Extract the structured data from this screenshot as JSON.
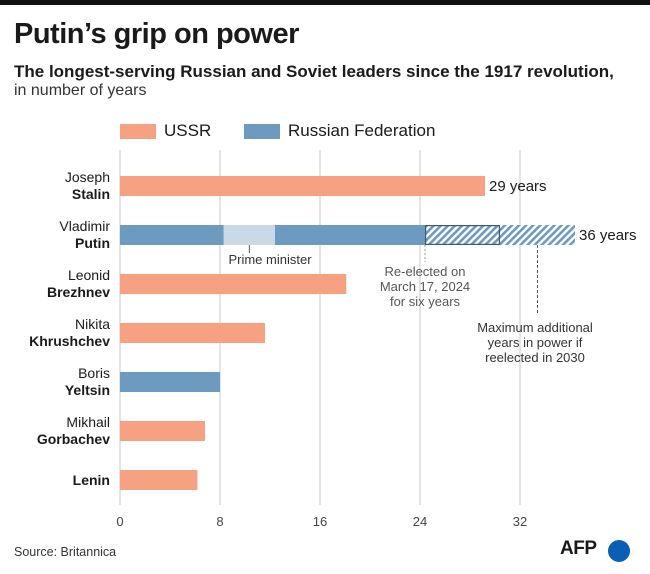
{
  "title": "Putin’s grip on power",
  "subtitle": "The longest-serving Russian and Soviet leaders since the 1917 revolution,",
  "subtitle2": "in number of years",
  "source": "Source: Britannica",
  "logo_text": "AFP",
  "colors": {
    "ussr": "#f5a182",
    "rf": "#6d9bbf",
    "pm": "#c9d9e5",
    "hatch": "#6d9bbf",
    "grid": "#c8c8c8"
  },
  "legend": [
    {
      "label": "USSR",
      "key": "ussr"
    },
    {
      "label": "Russian Federation",
      "key": "rf"
    }
  ],
  "chart_data": {
    "type": "bar",
    "orientation": "horizontal",
    "xlim": [
      0,
      36
    ],
    "xticks": [
      0,
      8,
      16,
      24,
      32
    ],
    "leaders": [
      {
        "first": "Joseph",
        "last": "Stalin",
        "value_label": "29 years",
        "segments": [
          {
            "from": 0,
            "to": 29.2,
            "kind": "ussr"
          }
        ]
      },
      {
        "first": "Vladimir",
        "last": "Putin",
        "value_label": "36 years",
        "segments": [
          {
            "from": 0,
            "to": 8.3,
            "kind": "rf"
          },
          {
            "from": 8.3,
            "to": 12.4,
            "kind": "pm"
          },
          {
            "from": 12.4,
            "to": 24.4,
            "kind": "rf"
          },
          {
            "from": 24.4,
            "to": 30.4,
            "kind": "hatch_outline"
          },
          {
            "from": 30.4,
            "to": 36.4,
            "kind": "hatch"
          }
        ]
      },
      {
        "first": "Leonid",
        "last": "Brezhnev",
        "value_label": "",
        "segments": [
          {
            "from": 0,
            "to": 18.1,
            "kind": "ussr"
          }
        ]
      },
      {
        "first": "Nikita",
        "last": "Khrushchev",
        "value_label": "",
        "segments": [
          {
            "from": 0,
            "to": 11.6,
            "kind": "ussr"
          }
        ]
      },
      {
        "first": "Boris",
        "last": "Yeltsin",
        "value_label": "",
        "segments": [
          {
            "from": 0,
            "to": 8.0,
            "kind": "rf"
          }
        ]
      },
      {
        "first": "Mikhail",
        "last": "Gorbachev",
        "value_label": "",
        "segments": [
          {
            "from": 0,
            "to": 6.8,
            "kind": "ussr"
          }
        ]
      },
      {
        "first": "",
        "last": "Lenin",
        "value_label": "",
        "segments": [
          {
            "from": 0,
            "to": 6.2,
            "kind": "ussr"
          }
        ]
      }
    ],
    "annotations": {
      "prime_minister": "Prime minister",
      "reelected": [
        "Re-elected on",
        "March 17, 2024",
        "for six years"
      ],
      "max_additional": [
        "Maximum additional",
        "years in power if",
        "reelected in 2030"
      ]
    }
  }
}
